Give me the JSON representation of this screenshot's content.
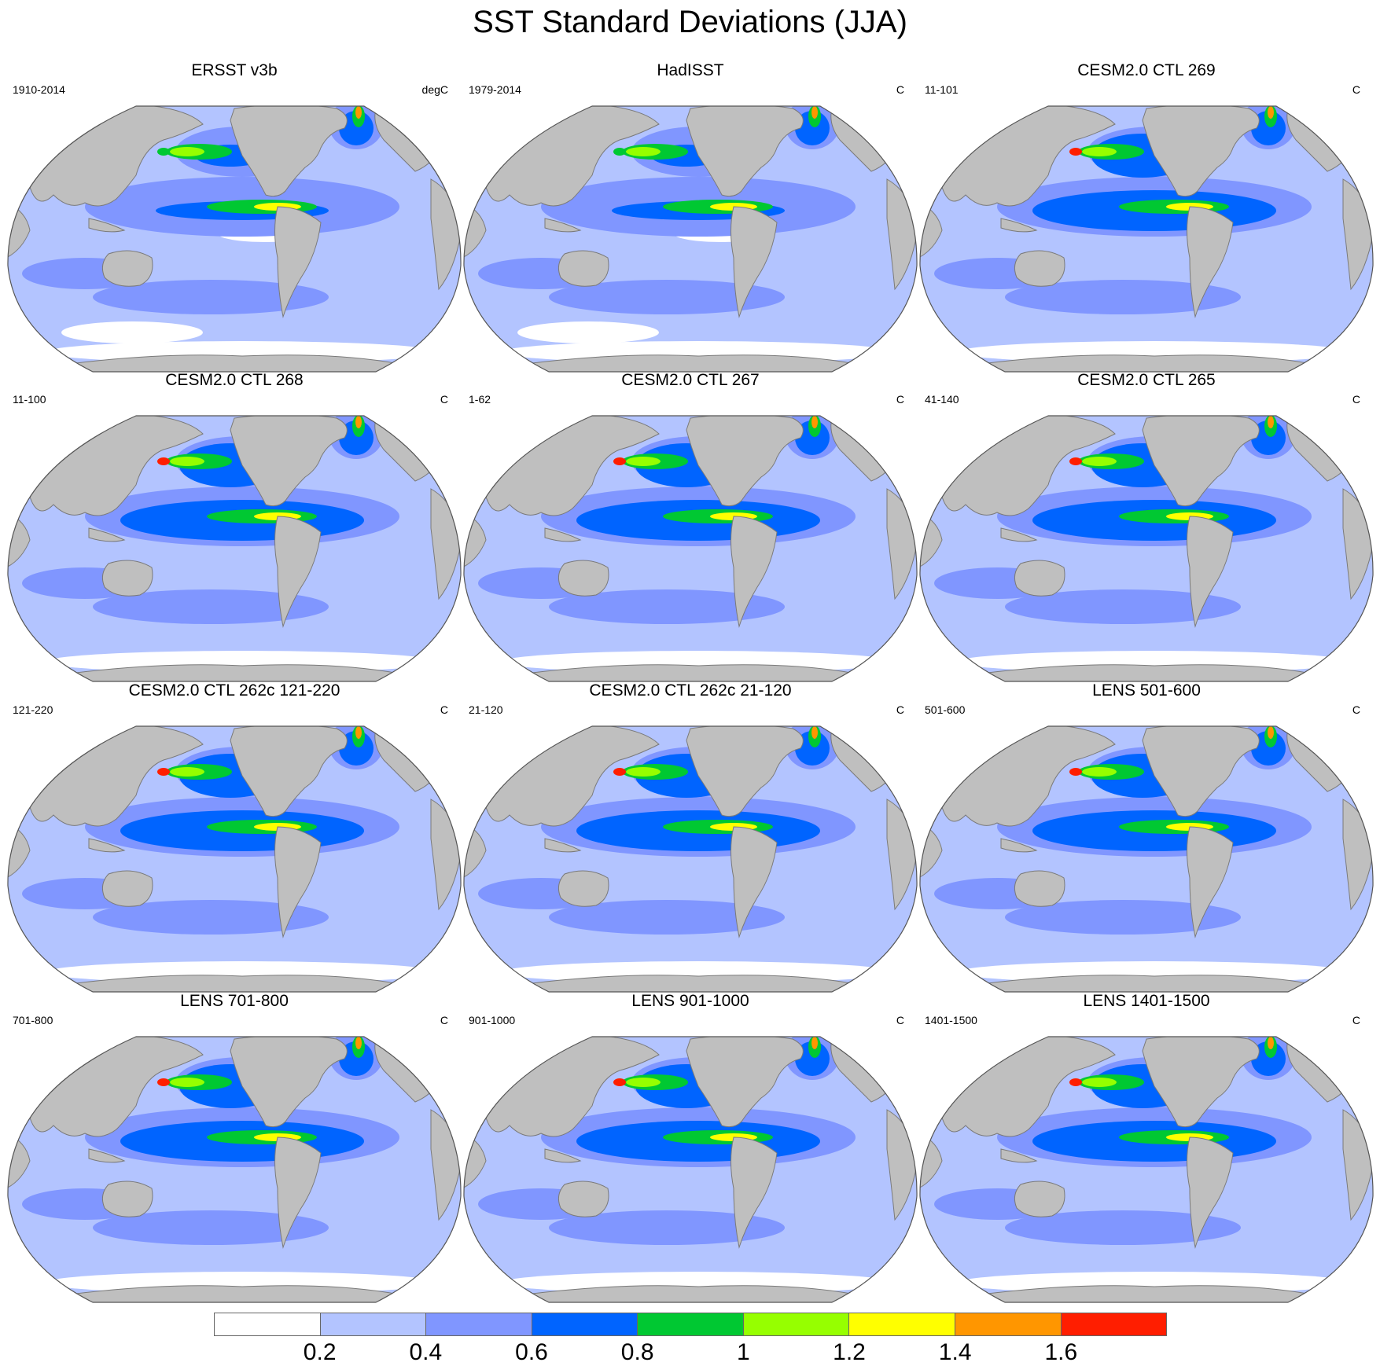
{
  "title": "SST Standard Deviations (JJA)",
  "colors": {
    "land": "#bfbfbf",
    "coastline": "#7a7a7a",
    "ocean_base": "#b3c4ff"
  },
  "colorbar": {
    "colors": [
      "#ffffff",
      "#b3c4ff",
      "#8096ff",
      "#0064ff",
      "#00c832",
      "#96ff00",
      "#ffff00",
      "#ff9600",
      "#ff1e00"
    ],
    "labels": [
      "0.2",
      "0.4",
      "0.6",
      "0.8",
      "1",
      "1.2",
      "1.4",
      "1.6"
    ]
  },
  "panels": [
    {
      "title": "ERSST v3b",
      "period": "1910-2014",
      "units": "degC"
    },
    {
      "title": "HadISST",
      "period": "1979-2014",
      "units": "C"
    },
    {
      "title": "CESM2.0 CTL 269",
      "period": "11-101",
      "units": "C"
    },
    {
      "title": "CESM2.0 CTL 268",
      "period": "11-100",
      "units": "C"
    },
    {
      "title": "CESM2.0 CTL 267",
      "period": "1-62",
      "units": "C"
    },
    {
      "title": "CESM2.0 CTL 265",
      "period": "41-140",
      "units": "C"
    },
    {
      "title": "CESM2.0 CTL 262c 121-220",
      "period": "121-220",
      "units": "C"
    },
    {
      "title": "CESM2.0 CTL 262c 21-120",
      "period": "21-120",
      "units": "C"
    },
    {
      "title": "LENS 501-600",
      "period": "501-600",
      "units": "C"
    },
    {
      "title": "LENS 701-800",
      "period": "701-800",
      "units": "C"
    },
    {
      "title": "LENS 901-1000",
      "period": "901-1000",
      "units": "C"
    },
    {
      "title": "LENS 1401-1500",
      "period": "1401-1500",
      "units": "C"
    }
  ]
}
